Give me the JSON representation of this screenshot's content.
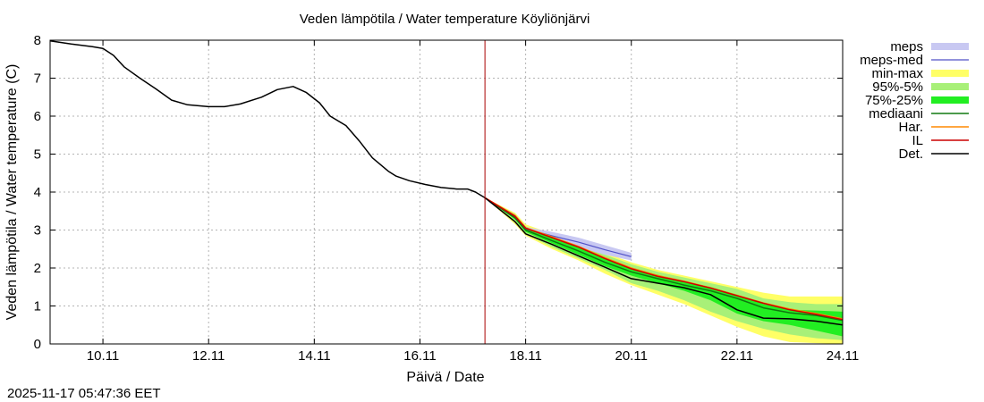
{
  "chart_data": {
    "type": "line",
    "title": "Veden lämpötila / Water temperature Köyliönjärvi",
    "xlabel": "Päivä / Date",
    "ylabel": "Veden lämpötila / Water temperature (C)",
    "timestamp": "2025-11-17 05:47:36 EET",
    "x_unit": "days since 2025-11-09 00:00",
    "xlim": [
      0,
      15
    ],
    "ylim": [
      0,
      8
    ],
    "grid": true,
    "legend_position": "outside-right",
    "x_ticks": [
      {
        "x": 1,
        "label": "10.11"
      },
      {
        "x": 3,
        "label": "12.11"
      },
      {
        "x": 5,
        "label": "14.11"
      },
      {
        "x": 7,
        "label": "16.11"
      },
      {
        "x": 9,
        "label": "18.11"
      },
      {
        "x": 11,
        "label": "20.11"
      },
      {
        "x": 13,
        "label": "22.11"
      },
      {
        "x": 15,
        "label": "24.11"
      }
    ],
    "y_ticks": [
      0,
      1,
      2,
      3,
      4,
      5,
      6,
      7,
      8
    ],
    "forecast_start_x": 8.23,
    "colors": {
      "meps": "#c8c8f2",
      "meps_med": "#5050c8",
      "minmax": "#ffff66",
      "p95_5": "#a8f078",
      "p75_25": "#22ee22",
      "mediaani": "#107810",
      "har": "#ff8800",
      "il": "#cc0000",
      "det": "#000000",
      "now_line": "#aa0000",
      "grid": "#b4b4b4"
    },
    "legend": [
      {
        "key": "meps",
        "label": "meps",
        "style": "band"
      },
      {
        "key": "meps_med",
        "label": "meps-med",
        "style": "line"
      },
      {
        "key": "minmax",
        "label": "min-max",
        "style": "band"
      },
      {
        "key": "p95_5",
        "label": "95%-5%",
        "style": "band"
      },
      {
        "key": "p75_25",
        "label": "75%-25%",
        "style": "band"
      },
      {
        "key": "mediaani",
        "label": "mediaani",
        "style": "line"
      },
      {
        "key": "har",
        "label": "Har.",
        "style": "line"
      },
      {
        "key": "il",
        "label": "IL",
        "style": "line"
      },
      {
        "key": "det",
        "label": "Det.",
        "style": "line"
      }
    ],
    "series": {
      "observed": {
        "name": "Det. (observed)",
        "x": [
          0,
          0.4,
          0.8,
          1.0,
          1.2,
          1.4,
          1.7,
          2.0,
          2.3,
          2.6,
          3.0,
          3.3,
          3.6,
          4.0,
          4.3,
          4.6,
          4.85,
          5.1,
          5.3,
          5.6,
          5.85,
          6.1,
          6.4,
          6.55,
          6.8,
          7.1,
          7.4,
          7.7,
          7.9,
          8.05,
          8.23
        ],
        "y": [
          7.98,
          7.9,
          7.83,
          7.78,
          7.6,
          7.3,
          7.0,
          6.72,
          6.42,
          6.3,
          6.25,
          6.25,
          6.32,
          6.5,
          6.7,
          6.78,
          6.62,
          6.35,
          6.0,
          5.75,
          5.35,
          4.9,
          4.55,
          4.42,
          4.3,
          4.2,
          4.12,
          4.08,
          4.08,
          4.0,
          3.85
        ]
      },
      "band_x": [
        8.23,
        8.8,
        9.0,
        9.5,
        10.0,
        10.5,
        11.0,
        11.5,
        12.0,
        12.5,
        13.0,
        13.5,
        14.0,
        14.5,
        15.0
      ],
      "minmax": {
        "lower": [
          3.85,
          3.15,
          2.85,
          2.5,
          2.2,
          1.85,
          1.55,
          1.3,
          1.05,
          0.75,
          0.45,
          0.2,
          0.05,
          0.02,
          0.0
        ],
        "upper": [
          3.85,
          3.45,
          3.15,
          2.9,
          2.65,
          2.4,
          2.15,
          1.95,
          1.8,
          1.65,
          1.5,
          1.35,
          1.25,
          1.25,
          1.25
        ]
      },
      "p95_5": {
        "lower": [
          3.85,
          3.2,
          2.9,
          2.55,
          2.25,
          1.95,
          1.6,
          1.4,
          1.15,
          0.85,
          0.6,
          0.4,
          0.25,
          0.15,
          0.1
        ],
        "upper": [
          3.85,
          3.42,
          3.1,
          2.85,
          2.6,
          2.35,
          2.1,
          1.9,
          1.75,
          1.6,
          1.45,
          1.2,
          1.1,
          1.05,
          1.05
        ]
      },
      "p75_25": {
        "lower": [
          3.85,
          3.28,
          2.95,
          2.65,
          2.35,
          2.05,
          1.8,
          1.6,
          1.4,
          1.15,
          0.8,
          0.6,
          0.5,
          0.35,
          0.2
        ],
        "upper": [
          3.85,
          3.38,
          3.05,
          2.8,
          2.55,
          2.25,
          2.0,
          1.82,
          1.65,
          1.5,
          1.3,
          1.05,
          0.9,
          0.88,
          0.85
        ]
      },
      "meps": {
        "x": [
          8.23,
          8.8,
          9.0,
          9.5,
          10.0,
          10.5,
          11.0
        ],
        "lower": [
          3.85,
          3.3,
          2.98,
          2.75,
          2.55,
          2.35,
          2.2
        ],
        "upper": [
          3.85,
          3.4,
          3.08,
          2.95,
          2.8,
          2.6,
          2.4
        ]
      },
      "meps_med": {
        "x": [
          8.23,
          8.8,
          9.0,
          9.5,
          10.0,
          10.5,
          11.0
        ],
        "y": [
          3.85,
          3.35,
          3.03,
          2.85,
          2.68,
          2.48,
          2.3
        ]
      },
      "mediaani": {
        "y": [
          3.85,
          3.32,
          3.0,
          2.72,
          2.45,
          2.15,
          1.9,
          1.72,
          1.55,
          1.4,
          1.2,
          0.95,
          0.82,
          0.75,
          0.62
        ]
      },
      "har": {
        "y": [
          3.85,
          3.38,
          3.06,
          2.82,
          2.57,
          2.27,
          2.0,
          1.8,
          1.65,
          1.48,
          1.28,
          1.08,
          0.92,
          0.8,
          0.66
        ]
      },
      "il": {
        "y": [
          3.85,
          3.36,
          3.05,
          2.8,
          2.55,
          2.25,
          1.98,
          1.78,
          1.64,
          1.47,
          1.27,
          1.07,
          0.9,
          0.78,
          0.64
        ]
      },
      "det": {
        "y": [
          3.85,
          3.22,
          2.9,
          2.62,
          2.32,
          2.02,
          1.72,
          1.6,
          1.48,
          1.3,
          0.9,
          0.68,
          0.66,
          0.6,
          0.5
        ]
      }
    }
  }
}
